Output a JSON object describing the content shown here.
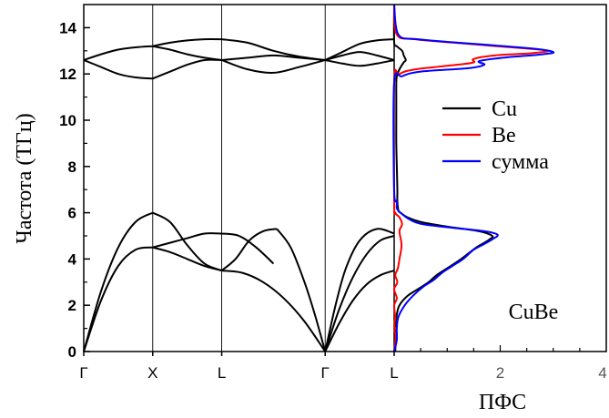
{
  "chart_data": [
    {
      "type": "line",
      "panel": "phonon-dispersion",
      "ylabel": "Частота (ТГц)",
      "ylim": [
        0,
        15
      ],
      "yticks": [
        0,
        2,
        4,
        6,
        8,
        10,
        12,
        14
      ],
      "x_points": [
        "Γ",
        "X",
        "L",
        "Γ",
        "L"
      ],
      "x_point_positions": [
        0,
        1,
        2,
        3.5,
        4.5
      ],
      "xlim": [
        0,
        4.5
      ],
      "line_color": "#000000",
      "grid": false,
      "branches": [
        {
          "x": [
            0,
            0.25,
            0.5,
            0.75,
            1.0
          ],
          "y": [
            0,
            2.6,
            4.5,
            5.6,
            6.0
          ]
        },
        {
          "x": [
            1.0,
            1.25,
            1.5,
            1.75,
            2.0
          ],
          "y": [
            6.0,
            5.6,
            4.6,
            3.8,
            3.5
          ]
        },
        {
          "x": [
            0,
            0.25,
            0.5,
            0.75,
            1.0
          ],
          "y": [
            0,
            2.2,
            3.7,
            4.4,
            4.5
          ]
        },
        {
          "x": [
            1.0,
            1.25,
            1.5,
            1.75,
            2.0
          ],
          "y": [
            4.5,
            4.7,
            4.9,
            5.1,
            5.1
          ]
        },
        {
          "x": [
            1.0,
            1.25,
            1.5,
            1.75,
            2.0
          ],
          "y": [
            4.5,
            4.3,
            4.0,
            3.7,
            3.5
          ]
        },
        {
          "x": [
            2.0,
            2.25,
            2.5,
            2.75
          ],
          "y": [
            5.1,
            5.0,
            4.5,
            3.8
          ]
        },
        {
          "x": [
            2.0,
            2.2,
            2.4,
            2.6,
            2.8
          ],
          "y": [
            3.5,
            4.0,
            4.8,
            5.2,
            5.3
          ]
        },
        {
          "x": [
            2.8,
            3.0,
            3.2,
            3.35,
            3.5
          ],
          "y": [
            5.3,
            4.5,
            3.0,
            1.6,
            0
          ]
        },
        {
          "x": [
            2.0,
            2.3,
            2.6,
            2.9,
            3.2,
            3.5
          ],
          "y": [
            3.5,
            3.4,
            3.0,
            2.3,
            1.3,
            0
          ]
        },
        {
          "x": [
            3.5,
            3.65,
            3.8,
            4.0,
            4.25,
            4.5
          ],
          "y": [
            0,
            2.0,
            3.6,
            4.8,
            5.3,
            5.1
          ]
        },
        {
          "x": [
            3.5,
            3.7,
            3.9,
            4.1,
            4.3,
            4.5
          ],
          "y": [
            0,
            1.8,
            3.2,
            4.2,
            4.8,
            5.0
          ]
        },
        {
          "x": [
            3.5,
            3.7,
            3.9,
            4.1,
            4.3,
            4.5
          ],
          "y": [
            0,
            1.2,
            2.2,
            2.9,
            3.3,
            3.5
          ]
        },
        {
          "x": [
            0,
            0.25,
            0.5,
            0.75,
            1.0
          ],
          "y": [
            12.6,
            12.85,
            13.05,
            13.15,
            13.2
          ]
        },
        {
          "x": [
            1.0,
            1.25,
            1.5,
            1.75,
            2.0
          ],
          "y": [
            13.2,
            13.35,
            13.45,
            13.5,
            13.5
          ]
        },
        {
          "x": [
            2.0,
            2.375,
            2.75,
            3.125,
            3.5
          ],
          "y": [
            13.5,
            13.35,
            13.0,
            12.75,
            12.6
          ]
        },
        {
          "x": [
            3.5,
            3.75,
            4.0,
            4.25,
            4.5
          ],
          "y": [
            12.6,
            12.95,
            13.3,
            13.45,
            13.5
          ]
        },
        {
          "x": [
            0,
            0.25,
            0.5,
            0.75,
            1.0
          ],
          "y": [
            12.6,
            12.3,
            12.0,
            11.85,
            11.8
          ]
        },
        {
          "x": [
            1.0,
            1.25,
            1.5,
            1.75,
            2.0
          ],
          "y": [
            11.8,
            12.1,
            12.4,
            12.6,
            12.6
          ]
        },
        {
          "x": [
            2.0,
            2.375,
            2.75,
            3.125,
            3.5
          ],
          "y": [
            12.6,
            12.2,
            12.05,
            12.3,
            12.6
          ]
        },
        {
          "x": [
            3.5,
            3.75,
            4.0,
            4.25,
            4.5
          ],
          "y": [
            12.6,
            12.45,
            12.35,
            12.45,
            12.6
          ]
        },
        {
          "x": [
            1.0,
            1.25,
            1.5,
            1.75,
            2.0
          ],
          "y": [
            13.2,
            13.05,
            12.85,
            12.7,
            12.6
          ]
        },
        {
          "x": [
            2.0,
            2.375,
            2.75,
            3.125,
            3.5
          ],
          "y": [
            12.6,
            12.7,
            12.8,
            12.7,
            12.6
          ]
        },
        {
          "x": [
            3.5,
            3.75,
            4.0,
            4.25,
            4.5
          ],
          "y": [
            12.6,
            12.8,
            12.95,
            12.8,
            12.6
          ]
        }
      ]
    },
    {
      "type": "line",
      "panel": "phonon-dos",
      "xlabel": "ПФС",
      "xlim": [
        0,
        4
      ],
      "xticks": [
        2,
        4
      ],
      "ylim": [
        0,
        15
      ],
      "annotation": "CuBe",
      "legend": {
        "placement": "right",
        "entries": [
          "Cu",
          "Be",
          "сумма"
        ]
      },
      "series": [
        {
          "name": "Cu",
          "color": "#000000",
          "points": [
            [
              0.02,
              0.0
            ],
            [
              0.03,
              0.5
            ],
            [
              0.02,
              1.0
            ],
            [
              0.05,
              1.6
            ],
            [
              0.1,
              2.0
            ],
            [
              0.25,
              2.4
            ],
            [
              0.45,
              2.7
            ],
            [
              0.65,
              3.0
            ],
            [
              0.8,
              3.3
            ],
            [
              1.0,
              3.6
            ],
            [
              1.2,
              3.9
            ],
            [
              1.35,
              4.15
            ],
            [
              1.55,
              4.5
            ],
            [
              1.7,
              4.7
            ],
            [
              1.8,
              4.85
            ],
            [
              1.85,
              5.0
            ],
            [
              1.6,
              5.2
            ],
            [
              1.0,
              5.4
            ],
            [
              0.5,
              5.6
            ],
            [
              0.25,
              5.8
            ],
            [
              0.12,
              6.0
            ],
            [
              0.08,
              6.1
            ],
            [
              0.06,
              6.5
            ],
            [
              0.06,
              7.0
            ],
            [
              0.05,
              8.0
            ],
            [
              0.04,
              9.0
            ],
            [
              0.04,
              10.0
            ],
            [
              0.04,
              11.0
            ],
            [
              0.04,
              11.6
            ],
            [
              0.05,
              11.9
            ],
            [
              0.1,
              12.2
            ],
            [
              0.18,
              12.5
            ],
            [
              0.22,
              12.6
            ],
            [
              0.18,
              12.8
            ],
            [
              0.15,
              13.0
            ],
            [
              0.05,
              13.2
            ],
            [
              0.0,
              13.4
            ],
            [
              0.0,
              15.0
            ]
          ]
        },
        {
          "name": "Be",
          "color": "#ff0000",
          "points": [
            [
              0.0,
              0.0
            ],
            [
              0.03,
              0.7
            ],
            [
              0.0,
              0.9
            ],
            [
              0.03,
              1.0
            ],
            [
              0.0,
              1.1
            ],
            [
              0.02,
              1.5
            ],
            [
              0.0,
              2.0
            ],
            [
              0.05,
              2.3
            ],
            [
              0.0,
              2.7
            ],
            [
              0.06,
              3.0
            ],
            [
              0.02,
              3.3
            ],
            [
              0.07,
              3.6
            ],
            [
              0.1,
              4.0
            ],
            [
              0.14,
              4.6
            ],
            [
              0.1,
              5.2
            ],
            [
              0.15,
              5.5
            ],
            [
              0.1,
              5.8
            ],
            [
              0.02,
              6.0
            ],
            [
              0.0,
              6.5
            ],
            [
              0.0,
              11.7
            ],
            [
              0.1,
              12.0
            ],
            [
              0.4,
              12.2
            ],
            [
              1.2,
              12.4
            ],
            [
              1.5,
              12.5
            ],
            [
              1.5,
              12.65
            ],
            [
              1.9,
              12.8
            ],
            [
              2.6,
              12.9
            ],
            [
              2.9,
              13.0
            ],
            [
              2.5,
              13.1
            ],
            [
              1.4,
              13.3
            ],
            [
              0.4,
              13.5
            ],
            [
              0.05,
              13.7
            ],
            [
              0.0,
              15.0
            ]
          ]
        },
        {
          "name": "сумма",
          "color": "#0000ff",
          "points": [
            [
              0.0,
              0.0
            ],
            [
              0.05,
              0.5
            ],
            [
              0.05,
              1.0
            ],
            [
              0.08,
              1.5
            ],
            [
              0.2,
              2.0
            ],
            [
              0.35,
              2.4
            ],
            [
              0.55,
              2.8
            ],
            [
              0.75,
              3.1
            ],
            [
              0.9,
              3.4
            ],
            [
              1.1,
              3.7
            ],
            [
              1.3,
              4.0
            ],
            [
              1.5,
              4.4
            ],
            [
              1.7,
              4.65
            ],
            [
              1.85,
              4.85
            ],
            [
              1.95,
              5.05
            ],
            [
              1.7,
              5.2
            ],
            [
              1.1,
              5.35
            ],
            [
              0.55,
              5.5
            ],
            [
              0.3,
              5.7
            ],
            [
              0.12,
              6.0
            ],
            [
              0.05,
              6.2
            ],
            [
              0.05,
              6.5
            ],
            [
              0.0,
              7.0
            ],
            [
              0.0,
              11.6
            ],
            [
              0.15,
              11.9
            ],
            [
              0.5,
              12.1
            ],
            [
              1.4,
              12.25
            ],
            [
              1.7,
              12.4
            ],
            [
              1.6,
              12.55
            ],
            [
              2.05,
              12.7
            ],
            [
              2.8,
              12.85
            ],
            [
              3.0,
              12.95
            ],
            [
              2.6,
              13.1
            ],
            [
              1.5,
              13.3
            ],
            [
              0.45,
              13.5
            ],
            [
              0.08,
              13.7
            ],
            [
              0.0,
              15.0
            ]
          ]
        }
      ]
    }
  ]
}
